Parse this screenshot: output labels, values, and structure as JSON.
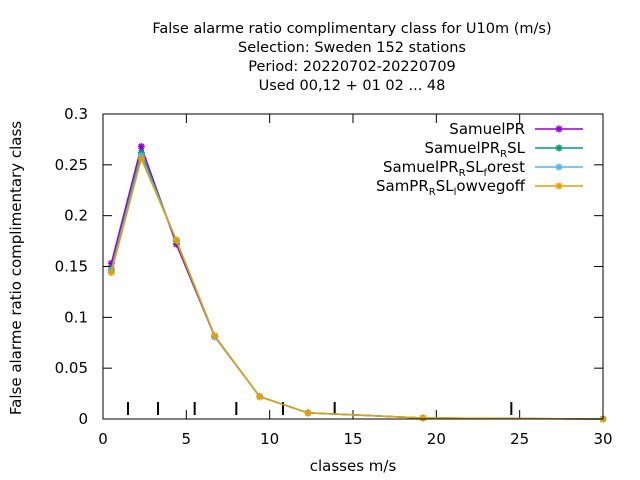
{
  "chart_data": {
    "type": "line",
    "title_lines": [
      "False alarme ratio complimentary class  for U10m (m/s)",
      "Selection: Sweden    152 stations",
      "Period: 20220702-20220709",
      "Used  00,12  + 01 02 ... 48"
    ],
    "xlabel": "classes m/s",
    "ylabel": "False alarme ratio complimentary class",
    "xlim": [
      0,
      30
    ],
    "ylim": [
      0,
      0.3
    ],
    "x_ticks": [
      0,
      5,
      10,
      15,
      20,
      25,
      30
    ],
    "x_tick_labels": [
      "0",
      "5",
      "10",
      "15",
      "20",
      "25",
      "30"
    ],
    "y_ticks": [
      0,
      0.05,
      0.1,
      0.15,
      0.2,
      0.25,
      0.3
    ],
    "y_tick_labels": [
      "0",
      "0.05",
      "0.1",
      "0.15",
      "0.2",
      "0.25",
      "0.3"
    ],
    "grid": false,
    "legend_position": "top-right",
    "class_markers_x": [
      1.5,
      3.3,
      5.5,
      8.0,
      10.8,
      13.9,
      24.5
    ],
    "series": [
      {
        "name_parts": [
          [
            "SamuelPR",
            ""
          ]
        ],
        "color": "#9400d3",
        "x": [
          0.5,
          2.3,
          4.4,
          6.7,
          9.4,
          12.3,
          19.2,
          30.0
        ],
        "y": [
          0.153,
          0.268,
          0.172,
          0.081,
          0.022,
          0.006,
          0.001,
          0.0
        ]
      },
      {
        "name_parts": [
          [
            "SamuelPR",
            ""
          ],
          [
            "R",
            "sub"
          ],
          [
            "SL",
            ""
          ]
        ],
        "color": "#009e73",
        "x": [
          0.5,
          2.3,
          4.4,
          6.7,
          9.4,
          12.3,
          19.2,
          30.0
        ],
        "y": [
          0.147,
          0.262,
          0.175,
          0.081,
          0.022,
          0.006,
          0.001,
          0.0
        ]
      },
      {
        "name_parts": [
          [
            "SamuelPR",
            ""
          ],
          [
            "R",
            "sub"
          ],
          [
            "SL",
            ""
          ],
          [
            "f",
            "sub"
          ],
          [
            "orest",
            ""
          ]
        ],
        "color": "#56b4e9",
        "x": [
          0.5,
          2.3,
          4.4,
          6.7,
          9.4,
          12.3,
          19.2,
          30.0
        ],
        "y": [
          0.146,
          0.259,
          0.176,
          0.081,
          0.022,
          0.006,
          0.001,
          0.0
        ]
      },
      {
        "name_parts": [
          [
            "SamPR",
            ""
          ],
          [
            "R",
            "sub"
          ],
          [
            "SL",
            ""
          ],
          [
            "l",
            "sub"
          ],
          [
            "owvegoff",
            ""
          ]
        ],
        "color": "#e69f00",
        "x": [
          0.5,
          2.3,
          4.4,
          6.7,
          9.4,
          12.3,
          19.2,
          30.0
        ],
        "y": [
          0.144,
          0.256,
          0.176,
          0.082,
          0.022,
          0.006,
          0.001,
          0.0
        ]
      }
    ]
  }
}
